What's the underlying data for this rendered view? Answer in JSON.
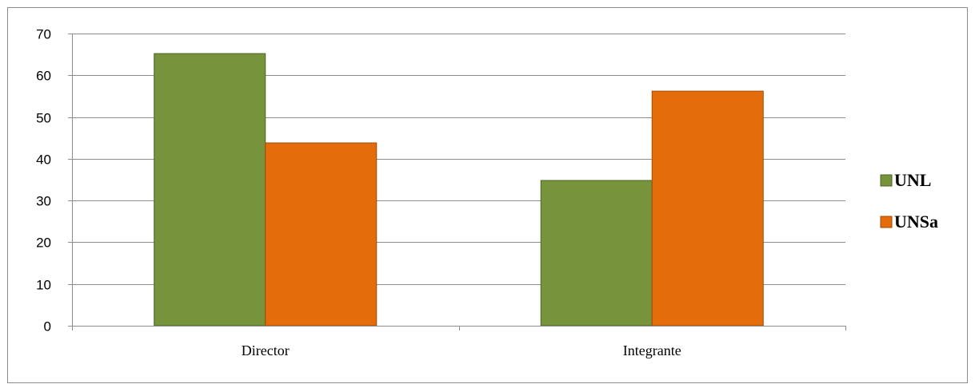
{
  "chart_data": {
    "type": "bar",
    "title": "",
    "xlabel": "",
    "ylabel": "",
    "categories": [
      "Director",
      "Integrante"
    ],
    "series": [
      {
        "name": "UNL",
        "values": [
          65.2,
          34.8
        ],
        "color": "#77933c"
      },
      {
        "name": "UNSa",
        "values": [
          43.8,
          56.2
        ],
        "color": "#e46c0a"
      }
    ],
    "ylim": [
      0,
      70
    ],
    "yticks": [
      0,
      10,
      20,
      30,
      40,
      50,
      60,
      70
    ],
    "grid": true,
    "legend_position": "right"
  }
}
